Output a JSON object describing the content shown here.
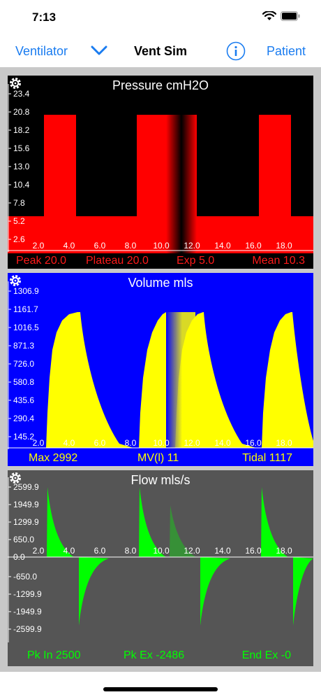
{
  "status": {
    "time": "7:13"
  },
  "nav": {
    "left": "Ventilator",
    "title": "Vent Sim",
    "right": "Patient"
  },
  "pressure": {
    "title": "Pressure cmH2O",
    "yticks": [
      "23.4",
      "20.8",
      "18.2",
      "15.6",
      "13.0",
      "10.4",
      "7.8",
      "5.2",
      "2.6"
    ],
    "xticks": [
      "2.0",
      "4.0",
      "6.0",
      "8.0",
      "10.0",
      "12.0",
      "14.0",
      "16.0",
      "18.0"
    ],
    "stats": {
      "peak": "Peak 20.0",
      "plateau": "Plateau 20.0",
      "exp": "Exp 5.0",
      "mean": "Mean 10.3"
    }
  },
  "volume": {
    "title": "Volume mls",
    "yticks": [
      "1306.9",
      "1161.7",
      "1016.5",
      "871.3",
      "726.0",
      "580.8",
      "435.6",
      "290.4",
      "145.2"
    ],
    "xticks": [
      "2.0",
      "4.0",
      "6.0",
      "8.0",
      "10.0",
      "12.0",
      "14.0",
      "16.0",
      "18.0"
    ],
    "stats": {
      "max": "Max 2992",
      "mv": "MV(l) 11",
      "tidal": "Tidal 1117"
    }
  },
  "flow": {
    "title": "Flow mls/s",
    "yticks_pos": [
      "2599.9",
      "1949.9",
      "1299.9",
      "650.0",
      "0.0"
    ],
    "yticks_neg": [
      "-650.0",
      "-1299.9",
      "-1949.9",
      "-2599.9"
    ],
    "xticks": [
      "2.0",
      "4.0",
      "6.0",
      "8.0",
      "10.0",
      "12.0",
      "14.0",
      "16.0",
      "18.0"
    ],
    "stats": {
      "pk_in": "Pk In 2500",
      "pk_ex": "Pk Ex -2486",
      "end_ex": "End Ex -0"
    }
  },
  "colors": {
    "accent": "#1a7cf0",
    "pressure": "#ff0000",
    "volume_bg": "#0000ff",
    "volume": "#ffff00",
    "flow_bg": "#555555",
    "flow": "#00ff00"
  },
  "icons": [
    "wifi-icon",
    "battery-icon",
    "chevron-down-icon",
    "info-icon",
    "gear-icon"
  ]
}
